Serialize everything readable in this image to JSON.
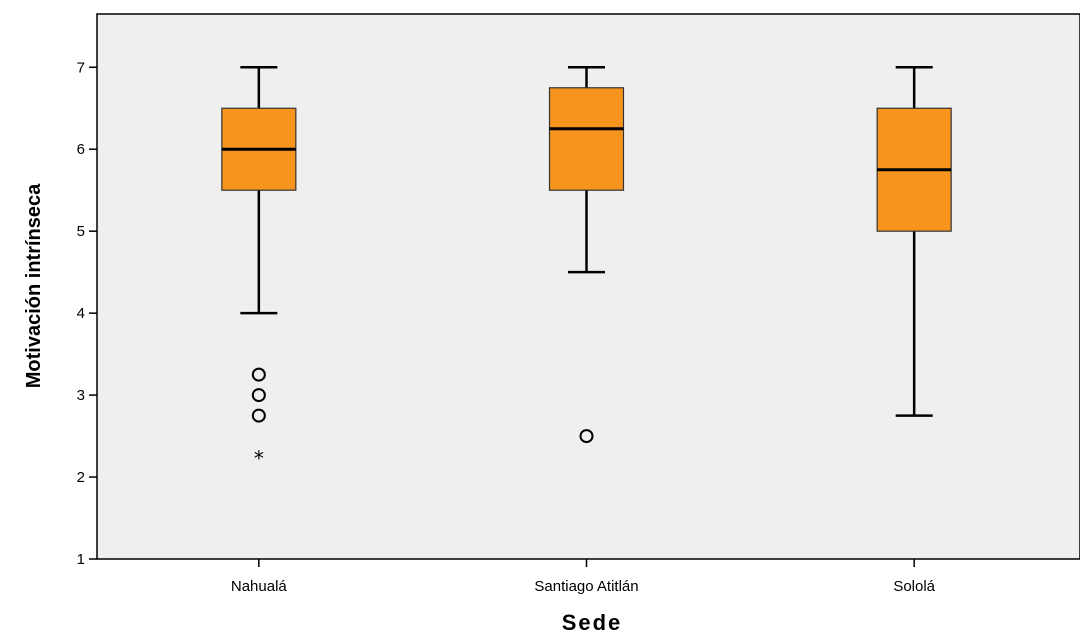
{
  "chart_data": {
    "type": "boxplot",
    "xlabel": "Sede",
    "ylabel": "Motivación intrínseca",
    "ylim": [
      1,
      7.65
    ],
    "yticks": [
      1,
      2,
      3,
      4,
      5,
      6,
      7
    ],
    "grid": false,
    "categories": [
      "Nahualá",
      "Santiago Atitlán",
      "Sololá"
    ],
    "boxes": [
      {
        "category": "Nahualá",
        "whisker_low": 4.0,
        "q1": 5.5,
        "median": 6.0,
        "q3": 6.5,
        "whisker_high": 7.0,
        "outliers": [
          3.25,
          3.0,
          2.75
        ],
        "extremes": [
          2.25
        ]
      },
      {
        "category": "Santiago Atitlán",
        "whisker_low": 4.5,
        "q1": 5.5,
        "median": 6.25,
        "q3": 6.75,
        "whisker_high": 7.0,
        "outliers": [
          2.5
        ],
        "extremes": []
      },
      {
        "category": "Sololá",
        "whisker_low": 2.75,
        "q1": 5.0,
        "median": 5.75,
        "q3": 6.5,
        "whisker_high": 7.0,
        "outliers": [],
        "extremes": []
      }
    ],
    "colors": {
      "box_fill": "#F7941D",
      "plot_background": "#EFEFEF",
      "line": "#000000"
    }
  }
}
